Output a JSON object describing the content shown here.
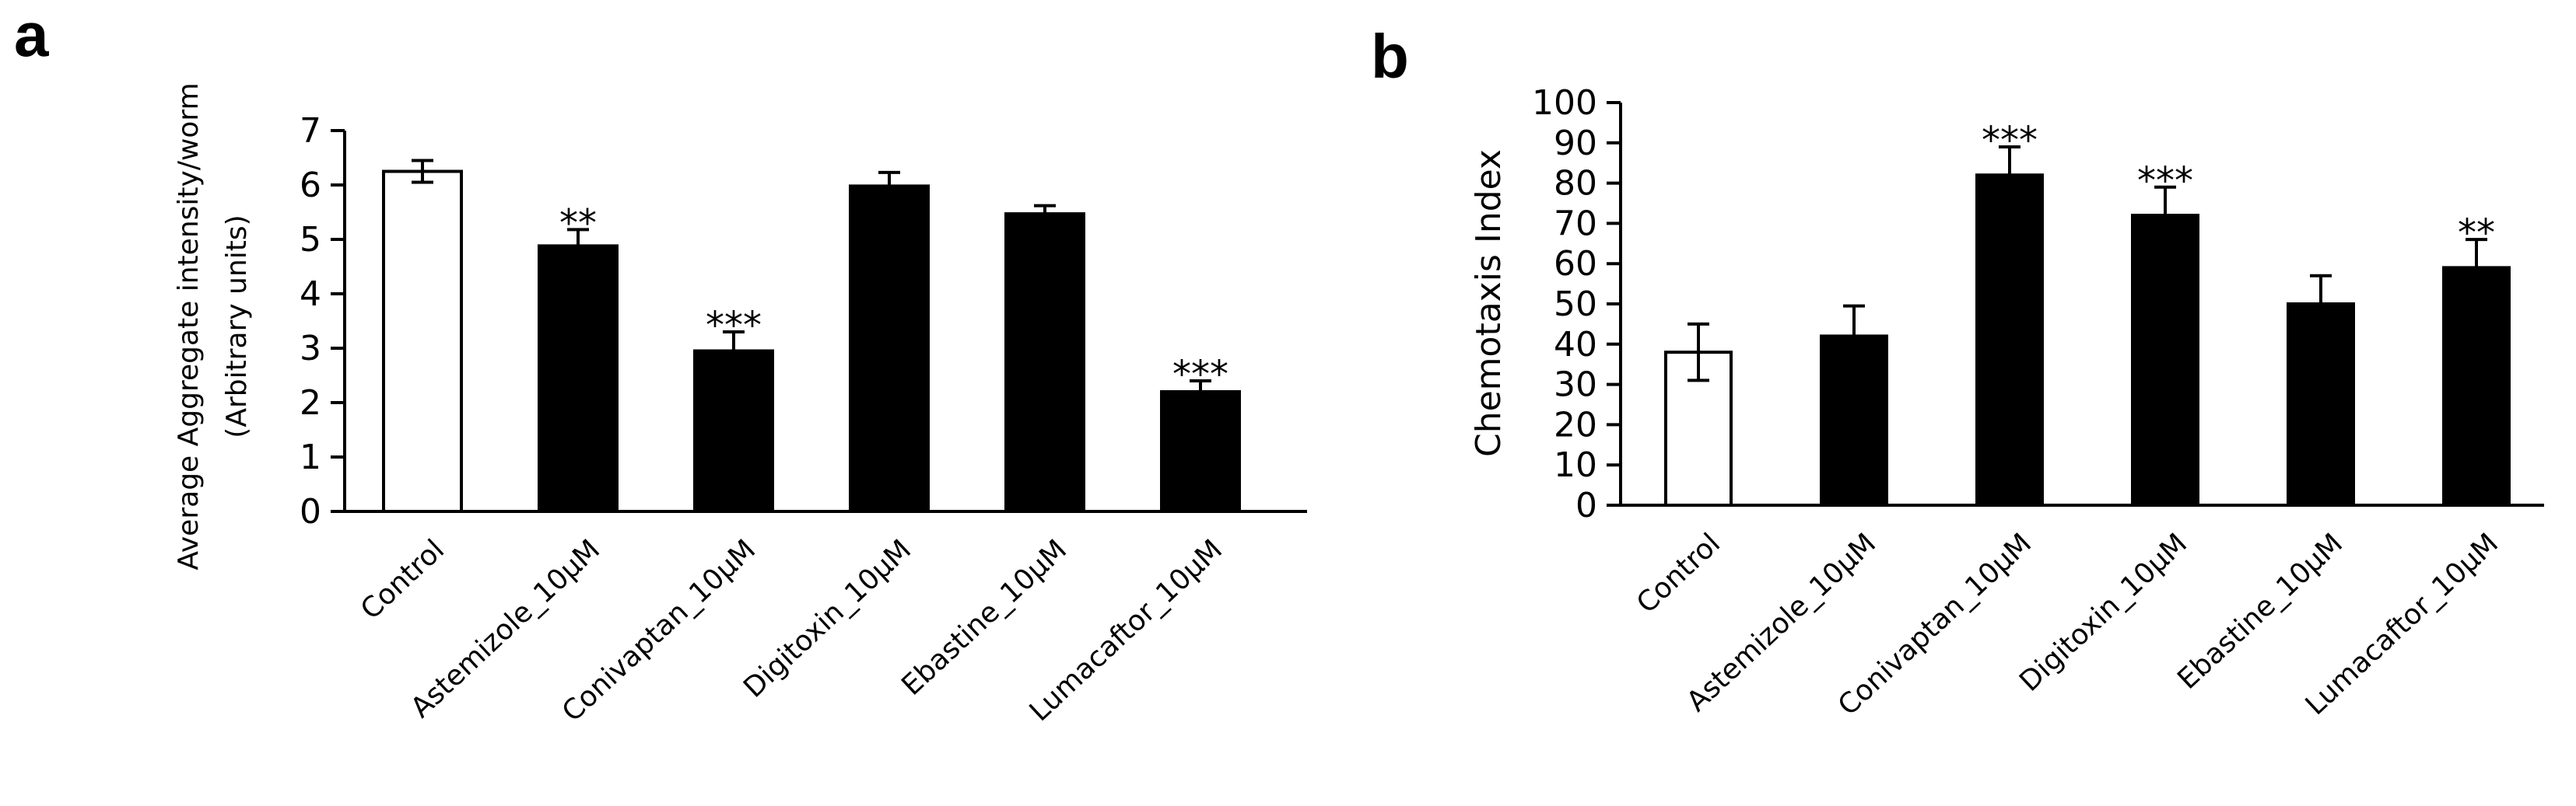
{
  "chart_data": [
    {
      "type": "bar",
      "panel": "a",
      "title": "",
      "xlabel": "",
      "ylabel": [
        "Average Aggregate intensity/worm",
        "(Arbitrary units)"
      ],
      "categories": [
        "Control",
        "Astemizole_10µM",
        "Conivaptan_10µM",
        "Digitoxin_10µM",
        "Ebastine_10µM",
        "Lumacaftor_10µM"
      ],
      "values": [
        6.25,
        4.88,
        2.95,
        5.98,
        5.47,
        2.2
      ],
      "errors": [
        0.2,
        0.3,
        0.35,
        0.25,
        0.15,
        0.2
      ],
      "significance": [
        "",
        "**",
        "***",
        "",
        "",
        "***"
      ],
      "bar_fill": [
        "#ffffff",
        "#000000",
        "#000000",
        "#000000",
        "#000000",
        "#000000"
      ],
      "ylim": [
        0,
        7
      ],
      "yticks": [
        0,
        1,
        2,
        3,
        4,
        5,
        6,
        7
      ],
      "grid": false,
      "legend": "none"
    },
    {
      "type": "bar",
      "panel": "b",
      "title": "",
      "xlabel": "",
      "ylabel": "Chemotaxis Index",
      "categories": [
        "Control",
        "Astemizole_10µM",
        "Conivaptan_10µM",
        "Digitoxin_10µM",
        "Ebastine_10µM",
        "Lumacaftor_10µM"
      ],
      "values": [
        38,
        42,
        82,
        72,
        50,
        59
      ],
      "errors": [
        7,
        7.5,
        7,
        7,
        7,
        7
      ],
      "significance": [
        "",
        "",
        "***",
        "***",
        "",
        "**"
      ],
      "bar_fill": [
        "#ffffff",
        "#000000",
        "#000000",
        "#000000",
        "#000000",
        "#000000"
      ],
      "ylim": [
        0,
        100
      ],
      "yticks": [
        0,
        10,
        20,
        30,
        40,
        50,
        60,
        70,
        80,
        90,
        100
      ],
      "grid": false,
      "legend": "none"
    }
  ],
  "panel_labels": [
    "a",
    "b"
  ]
}
